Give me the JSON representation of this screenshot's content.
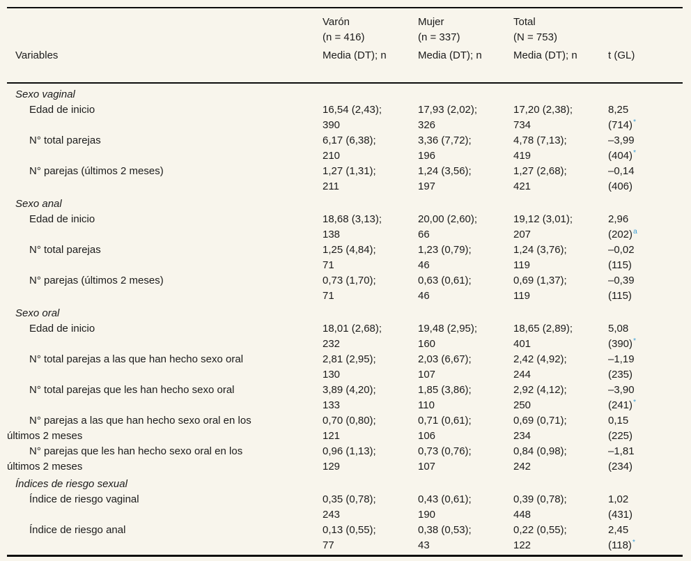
{
  "page": {
    "background_color": "#f8f5ec",
    "text_color": "#1b1b1b",
    "footnote_link_color": "#3fa0d6"
  },
  "table": {
    "header": {
      "variables_label": "Variables",
      "t_label": "t (GL)",
      "groups": [
        {
          "name": "Varón",
          "n": "(n = 416)",
          "sub": "Media (DT); n"
        },
        {
          "name": "Mujer",
          "n": "(n = 337)",
          "sub": "Media (DT); n"
        },
        {
          "name": "Total",
          "n": "(N = 753)",
          "sub": "Media (DT); n"
        }
      ]
    },
    "sections": [
      {
        "label": "Sexo vaginal",
        "items": [
          {
            "label": "Edad de inicio",
            "varon": "16,54 (2,43);\n390",
            "mujer": "17,93 (2,02);\n326",
            "total": "17,20 (2,38);\n734",
            "t1": "8,25",
            "t2": "(714)",
            "mark": "*"
          },
          {
            "label": "N° total parejas",
            "varon": "6,17 (6,38);\n210",
            "mujer": "3,36 (7,72);\n196",
            "total": "4,78 (7,13);\n419",
            "t1": "–3,99",
            "t2": "(404)",
            "mark": "*"
          },
          {
            "label": "N° parejas (últimos 2 meses)",
            "varon": "1,27 (1,31);\n211",
            "mujer": "1,24 (3,56);\n197",
            "total": "1,27 (2,68);\n421",
            "t1": "–0,14",
            "t2": "(406)",
            "mark": ""
          }
        ]
      },
      {
        "label": "Sexo anal",
        "items": [
          {
            "label": "Edad de inicio",
            "varon": "18,68 (3,13);\n138",
            "mujer": "20,00 (2,60);\n66",
            "total": "19,12 (3,01);\n207",
            "t1": "2,96",
            "t2": "(202)",
            "mark": "a"
          },
          {
            "label": "N° total parejas",
            "varon": "1,25 (4,84);\n71",
            "mujer": "1,23 (0,79);\n46",
            "total": "1,24 (3,76);\n119",
            "t1": "–0,02",
            "t2": "(115)",
            "mark": ""
          },
          {
            "label": "N° parejas (últimos 2 meses)",
            "varon": "0,73 (1,70);\n71",
            "mujer": "0,63 (0,61);\n46",
            "total": "0,69 (1,37);\n119",
            "t1": "–0,39",
            "t2": "(115)",
            "mark": ""
          }
        ]
      },
      {
        "label": "Sexo oral",
        "items": [
          {
            "label": "Edad de inicio",
            "varon": "18,01 (2,68);\n232",
            "mujer": "19,48 (2,95);\n160",
            "total": "18,65 (2,89);\n401",
            "t1": "5,08",
            "t2": "(390)",
            "mark": "*"
          },
          {
            "label": "N° total parejas a las que han hecho sexo oral",
            "varon": "2,81 (2,95);\n130",
            "mujer": "2,03 (6,67);\n107",
            "total": "2,42 (4,92);\n244",
            "t1": "–1,19",
            "t2": "(235)",
            "mark": ""
          },
          {
            "label": "N° total parejas que les han hecho sexo oral",
            "varon": "3,89 (4,20);\n133",
            "mujer": "1,85 (3,86);\n110",
            "total": "2,92 (4,12);\n250",
            "t1": "–3,90",
            "t2": "(241)",
            "mark": "*"
          },
          {
            "label": "N° parejas a las que han hecho sexo oral en los\núltimos 2 meses",
            "varon": "0,70 (0,80);\n121",
            "mujer": "0,71 (0,61);\n106",
            "total": "0,69 (0,71);\n234",
            "t1": "0,15",
            "t2": "(225)",
            "mark": ""
          },
          {
            "label": "N° parejas que les han hecho sexo oral en los\núltimos 2 meses",
            "varon": "0,96 (1,13);\n129",
            "mujer": "0,73 (0,76);\n107",
            "total": "0,84 (0,98);\n242",
            "t1": "–1,81",
            "t2": "(234)",
            "mark": ""
          }
        ]
      },
      {
        "label": "Índices de riesgo sexual",
        "items": [
          {
            "label": "Índice de riesgo vaginal",
            "varon": "0,35 (0,78);\n243",
            "mujer": "0,43 (0,61);\n190",
            "total": "0,39 (0,78);\n448",
            "t1": "1,02",
            "t2": "(431)",
            "mark": ""
          },
          {
            "label": "Índice de riesgo anal",
            "varon": "0,13 (0,55);\n77",
            "mujer": "0,38 (0,53);\n43",
            "total": "0,22 (0,55);\n122",
            "t1": "2,45",
            "t2": "(118)",
            "mark": "*"
          }
        ]
      }
    ]
  }
}
